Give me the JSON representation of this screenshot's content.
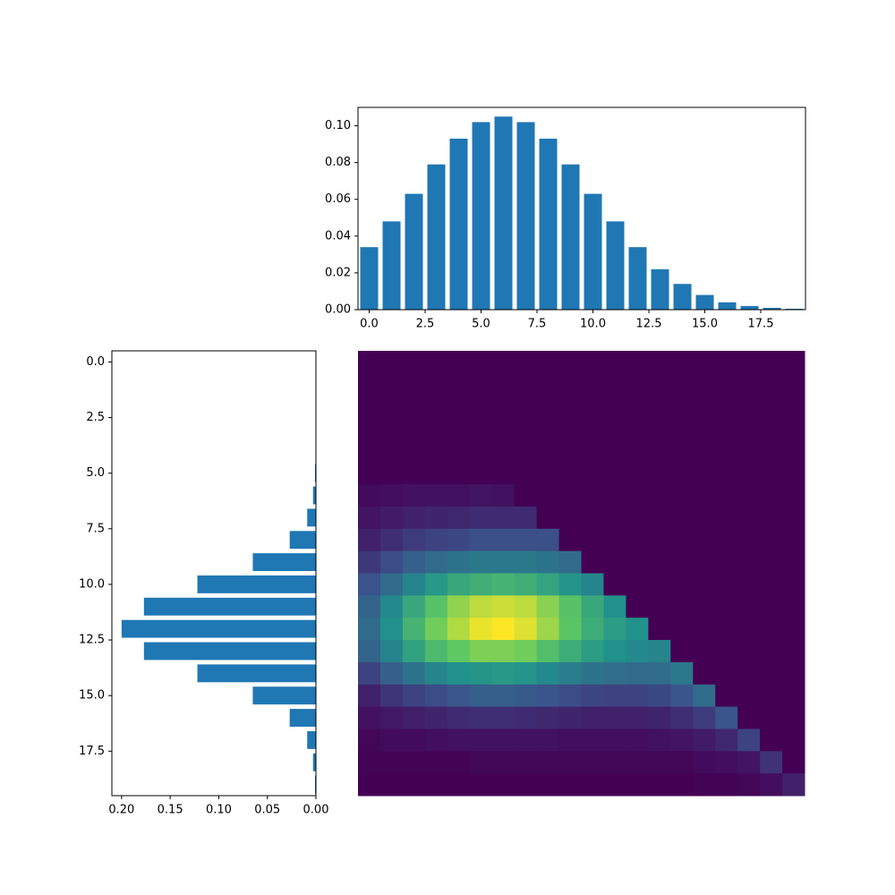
{
  "chart_data": [
    {
      "type": "bar",
      "color": "#1f77b4",
      "x": [
        0,
        1,
        2,
        3,
        4,
        5,
        6,
        7,
        8,
        9,
        10,
        11,
        12,
        13,
        14,
        15,
        16,
        17,
        18,
        19
      ],
      "values": [
        0.034,
        0.048,
        0.063,
        0.079,
        0.093,
        0.102,
        0.105,
        0.102,
        0.093,
        0.079,
        0.063,
        0.048,
        0.034,
        0.022,
        0.014,
        0.008,
        0.004,
        0.002,
        0.001,
        0.0005
      ],
      "xlim": [
        -0.5,
        19.5
      ],
      "xticks": [
        {
          "value": 0,
          "label": "0.0"
        },
        {
          "value": 2.5,
          "label": "2.5"
        },
        {
          "value": 5,
          "label": "5.0"
        },
        {
          "value": 7.5,
          "label": "7.5"
        },
        {
          "value": 10,
          "label": "10.0"
        },
        {
          "value": 12.5,
          "label": "12.5"
        },
        {
          "value": 15,
          "label": "15.0"
        },
        {
          "value": 17.5,
          "label": "17.5"
        }
      ],
      "ylim": [
        0,
        0.11
      ],
      "yticks": [
        {
          "value": 0,
          "label": "0.00"
        },
        {
          "value": 0.02,
          "label": "0.02"
        },
        {
          "value": 0.04,
          "label": "0.04"
        },
        {
          "value": 0.06,
          "label": "0.06"
        },
        {
          "value": 0.08,
          "label": "0.08"
        },
        {
          "value": 0.1,
          "label": "0.10"
        }
      ]
    },
    {
      "type": "barh",
      "color": "#1f77b4",
      "y": [
        0,
        1,
        2,
        3,
        4,
        5,
        6,
        7,
        8,
        9,
        10,
        11,
        12,
        13,
        14,
        15,
        16,
        17,
        18,
        19
      ],
      "values": [
        0,
        0,
        0,
        0,
        0,
        0.001,
        0.003,
        0.009,
        0.027,
        0.065,
        0.122,
        0.177,
        0.2,
        0.177,
        0.122,
        0.065,
        0.027,
        0.009,
        0.003,
        0.001
      ],
      "xlim": [
        0.21,
        0
      ],
      "xticks": [
        {
          "value": 0.2,
          "label": "0.20"
        },
        {
          "value": 0.15,
          "label": "0.15"
        },
        {
          "value": 0.1,
          "label": "0.10"
        },
        {
          "value": 0.05,
          "label": "0.05"
        },
        {
          "value": 0,
          "label": "0.00"
        }
      ],
      "ylim": [
        19.5,
        -0.5
      ],
      "yticks": [
        {
          "value": 0,
          "label": "0.0"
        },
        {
          "value": 2.5,
          "label": "2.5"
        },
        {
          "value": 5,
          "label": "5.0"
        },
        {
          "value": 7.5,
          "label": "7.5"
        },
        {
          "value": 10,
          "label": "10.0"
        },
        {
          "value": 12.5,
          "label": "12.5"
        },
        {
          "value": 15,
          "label": "15.0"
        },
        {
          "value": 17.5,
          "label": "17.5"
        }
      ]
    },
    {
      "type": "heatmap",
      "colormap": "viridis",
      "values": [
        [
          0,
          0,
          0,
          0,
          0,
          0,
          0,
          0,
          0,
          0,
          0,
          0,
          0,
          0,
          0,
          0,
          0,
          0,
          0,
          0
        ],
        [
          0,
          0,
          0,
          0,
          0,
          0,
          0,
          0,
          0,
          0,
          0,
          0,
          0,
          0,
          0,
          0,
          0,
          0,
          0,
          0
        ],
        [
          0,
          0,
          0,
          0,
          0,
          0,
          0,
          0,
          0,
          0,
          0,
          0,
          0,
          0,
          0,
          0,
          0,
          0,
          0,
          0
        ],
        [
          0,
          0,
          0,
          0,
          0,
          0,
          0,
          0,
          0,
          0,
          0,
          0,
          0,
          0,
          0,
          0,
          0,
          0,
          0,
          0
        ],
        [
          0,
          0,
          0,
          0,
          0,
          0,
          0,
          0,
          0,
          0,
          0,
          0,
          0,
          0,
          0,
          0,
          0,
          0,
          0,
          0
        ],
        [
          0,
          0,
          0,
          0,
          0,
          0,
          0,
          0,
          0,
          0,
          0,
          0,
          0,
          0,
          0,
          0,
          0,
          0,
          0,
          0
        ],
        [
          0.03,
          0.04,
          0.05,
          0.05,
          0.05,
          0.06,
          0.05,
          0,
          0,
          0,
          0,
          0,
          0,
          0,
          0,
          0,
          0,
          0,
          0,
          0
        ],
        [
          0.06,
          0.08,
          0.1,
          0.11,
          0.12,
          0.13,
          0.13,
          0.13,
          0,
          0,
          0,
          0,
          0,
          0,
          0,
          0,
          0,
          0,
          0,
          0
        ],
        [
          0.1,
          0.14,
          0.18,
          0.2,
          0.22,
          0.24,
          0.24,
          0.24,
          0.24,
          0,
          0,
          0,
          0,
          0,
          0,
          0,
          0,
          0,
          0,
          0
        ],
        [
          0.17,
          0.23,
          0.3,
          0.35,
          0.38,
          0.4,
          0.4,
          0.4,
          0.38,
          0.35,
          0,
          0,
          0,
          0,
          0,
          0,
          0,
          0,
          0,
          0
        ],
        [
          0.25,
          0.35,
          0.45,
          0.53,
          0.6,
          0.63,
          0.65,
          0.63,
          0.58,
          0.52,
          0.45,
          0,
          0,
          0,
          0,
          0,
          0,
          0,
          0,
          0
        ],
        [
          0.32,
          0.47,
          0.6,
          0.72,
          0.83,
          0.9,
          0.92,
          0.9,
          0.82,
          0.72,
          0.6,
          0.5,
          0,
          0,
          0,
          0,
          0,
          0,
          0,
          0
        ],
        [
          0.35,
          0.5,
          0.65,
          0.78,
          0.88,
          0.97,
          1,
          0.95,
          0.85,
          0.73,
          0.62,
          0.55,
          0.5,
          0,
          0,
          0,
          0,
          0,
          0,
          0
        ],
        [
          0.32,
          0.45,
          0.57,
          0.68,
          0.75,
          0.8,
          0.8,
          0.78,
          0.7,
          0.62,
          0.55,
          0.5,
          0.47,
          0.45,
          0,
          0,
          0,
          0,
          0,
          0
        ],
        [
          0.2,
          0.3,
          0.38,
          0.45,
          0.5,
          0.52,
          0.53,
          0.52,
          0.47,
          0.42,
          0.38,
          0.36,
          0.35,
          0.35,
          0.4,
          0,
          0,
          0,
          0,
          0
        ],
        [
          0.1,
          0.16,
          0.2,
          0.23,
          0.27,
          0.3,
          0.3,
          0.28,
          0.26,
          0.23,
          0.21,
          0.2,
          0.2,
          0.22,
          0.26,
          0.35,
          0,
          0,
          0,
          0
        ],
        [
          0.05,
          0.07,
          0.09,
          0.11,
          0.13,
          0.14,
          0.14,
          0.13,
          0.12,
          0.11,
          0.1,
          0.1,
          0.1,
          0.11,
          0.14,
          0.18,
          0.26,
          0,
          0,
          0
        ],
        [
          0.02,
          0.03,
          0.03,
          0.04,
          0.05,
          0.05,
          0.05,
          0.05,
          0.05,
          0.04,
          0.04,
          0.04,
          0.04,
          0.05,
          0.06,
          0.08,
          0.12,
          0.2,
          0,
          0
        ],
        [
          0.01,
          0.01,
          0.01,
          0.01,
          0.01,
          0.02,
          0.02,
          0.02,
          0.02,
          0.02,
          0.02,
          0.02,
          0.02,
          0.02,
          0.02,
          0.03,
          0.04,
          0.06,
          0.15,
          0
        ],
        [
          0,
          0,
          0,
          0,
          0,
          0,
          0,
          0,
          0,
          0,
          0,
          0,
          0,
          0,
          0,
          0.01,
          0.01,
          0.02,
          0.04,
          0.1
        ]
      ]
    }
  ]
}
